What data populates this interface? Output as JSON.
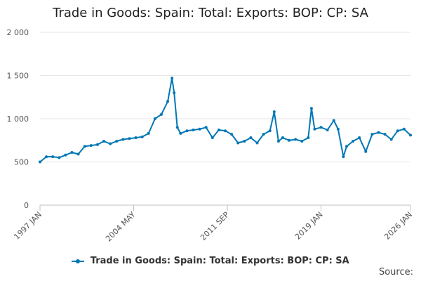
{
  "chart_data": {
    "type": "line",
    "title": "Trade in Goods: Spain: Total: Exports: BOP: CP: SA",
    "ylim": [
      0,
      2000
    ],
    "yticks": [
      0,
      500,
      1000,
      1500,
      2000
    ],
    "ytick_labels": [
      "0",
      "500",
      "1 000",
      "1 500",
      "2 000"
    ],
    "xlim": [
      "1997 JAN",
      "2026 JAN"
    ],
    "xticks": [
      "1997 JAN",
      "2004 MAY",
      "2011 SEP",
      "2019 JAN",
      "2026 JAN"
    ],
    "grid": true,
    "legend": "bottom",
    "series": [
      {
        "name": "Trade in Goods: Spain: Total: Exports: BOP: CP: SA",
        "color": "#0077b5",
        "x": [
          "1997 JAN",
          "1997 JUL",
          "1998 JAN",
          "1998 JUL",
          "1999 JAN",
          "1999 JUL",
          "2000 JAN",
          "2000 JUL",
          "2001 JAN",
          "2001 JUL",
          "2002 JAN",
          "2002 JUL",
          "2003 JAN",
          "2003 JUL",
          "2004 JAN",
          "2004 JUL",
          "2005 JAN",
          "2005 JUL",
          "2006 JAN",
          "2006 JUL",
          "2007 JAN",
          "2007 MAY",
          "2007 JUL",
          "2007 OCT",
          "2008 JAN",
          "2008 JUL",
          "2009 JAN",
          "2009 JUL",
          "2010 JAN",
          "2010 JUL",
          "2011 JAN",
          "2011 JUL",
          "2012 JAN",
          "2012 JUL",
          "2013 JAN",
          "2013 JUL",
          "2014 JAN",
          "2014 JUL",
          "2015 JAN",
          "2015 MAY",
          "2015 SEP",
          "2016 JAN",
          "2016 JUL",
          "2017 JAN",
          "2017 JUL",
          "2018 JAN",
          "2018 APR",
          "2018 JUL",
          "2019 JAN",
          "2019 JUL",
          "2020 JAN",
          "2020 MAY",
          "2020 OCT",
          "2021 JAN",
          "2021 JUL",
          "2022 JAN",
          "2022 JUL",
          "2023 JAN",
          "2023 JUL",
          "2024 JAN",
          "2024 JUL",
          "2025 JAN",
          "2025 JUL",
          "2026 JAN"
        ],
        "values": [
          500,
          560,
          560,
          550,
          580,
          610,
          590,
          680,
          690,
          700,
          740,
          710,
          740,
          760,
          770,
          780,
          790,
          830,
          1000,
          1050,
          1200,
          1470,
          1300,
          900,
          830,
          860,
          870,
          880,
          900,
          780,
          870,
          860,
          820,
          720,
          740,
          780,
          720,
          820,
          860,
          1080,
          740,
          780,
          750,
          760,
          740,
          780,
          1120,
          880,
          900,
          870,
          980,
          880,
          560,
          680,
          740,
          780,
          620,
          820,
          840,
          820,
          760,
          860,
          880,
          810
        ]
      }
    ]
  },
  "source_label": "Source:"
}
